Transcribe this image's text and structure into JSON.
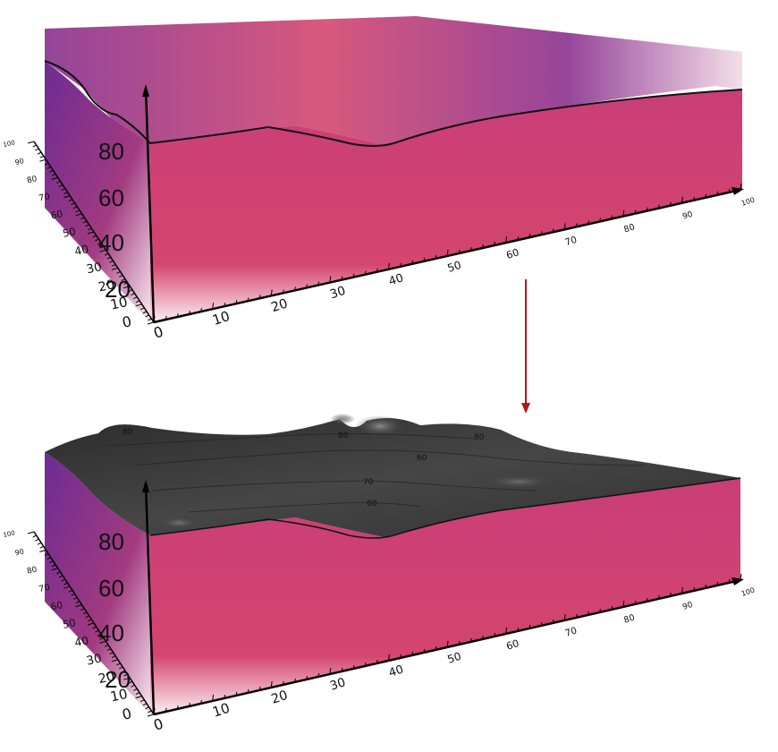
{
  "panels": [
    {
      "id": "top",
      "z_axis_labels": [
        "80",
        "60",
        "40",
        "20"
      ],
      "x_axis_labels": [
        "0",
        "10",
        "20",
        "30",
        "40",
        "50",
        "60",
        "70",
        "80",
        "90",
        "100"
      ],
      "y_axis_labels": [
        "0",
        "10",
        "20",
        "30",
        "40",
        "50",
        "60",
        "70",
        "80",
        "90",
        "100"
      ]
    },
    {
      "id": "bottom",
      "z_axis_labels": [
        "80",
        "60",
        "40",
        "20"
      ],
      "x_axis_labels": [
        "0",
        "10",
        "20",
        "30",
        "40",
        "50",
        "60",
        "70",
        "80",
        "90",
        "100"
      ],
      "y_axis_labels": [
        "0",
        "10",
        "20",
        "30",
        "40",
        "50",
        "60",
        "70",
        "80",
        "90",
        "100"
      ],
      "contour_labels": [
        "80",
        "80",
        "70",
        "60",
        "60",
        "80"
      ]
    }
  ],
  "colors": {
    "volume_main": "#d4456f",
    "volume_top": "#7a2f8f",
    "volume_side": "#9a3a8a",
    "surface": "#3a3a3a",
    "arrow": "#b01818"
  }
}
